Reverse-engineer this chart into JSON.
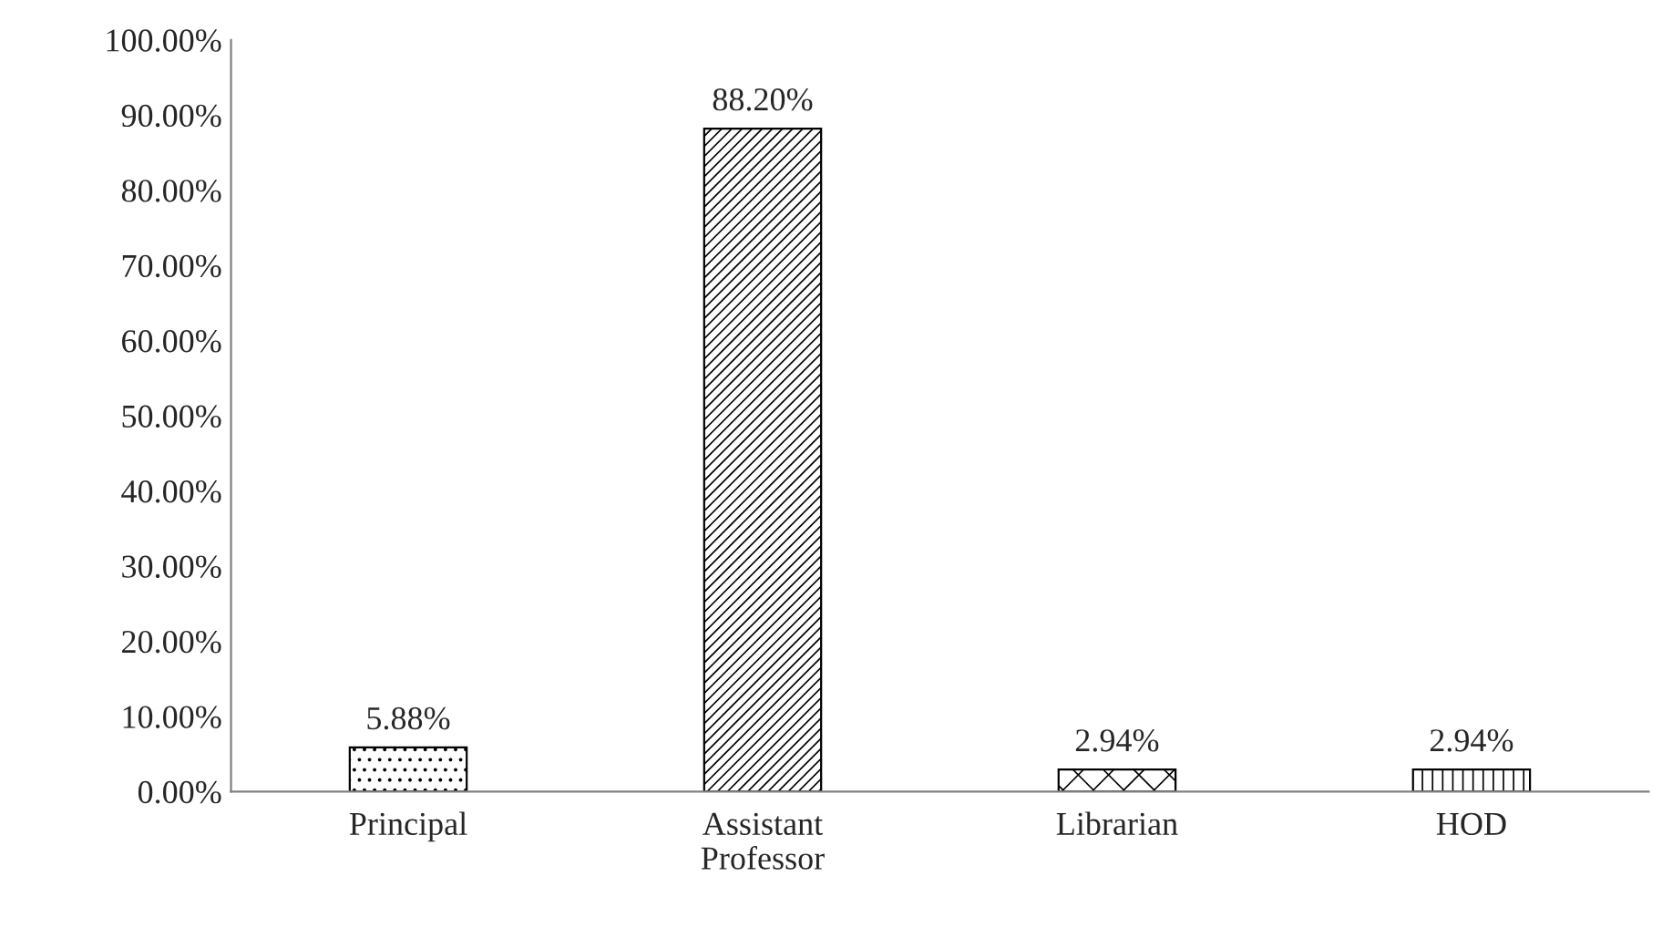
{
  "chart_data": {
    "type": "bar",
    "categories": [
      "Principal",
      "Assistant\nProfessor",
      "Librarian",
      "HOD"
    ],
    "values": [
      5.88,
      88.2,
      2.94,
      2.94
    ],
    "value_labels": [
      "5.88%",
      "88.20%",
      "2.94%",
      "2.94%"
    ],
    "ylim": [
      0,
      100
    ],
    "yticks": [
      {
        "value": 0,
        "label": "0.00%"
      },
      {
        "value": 10,
        "label": "10.00%"
      },
      {
        "value": 20,
        "label": "20.00%"
      },
      {
        "value": 30,
        "label": "30.00%"
      },
      {
        "value": 40,
        "label": "40.00%"
      },
      {
        "value": 50,
        "label": "50.00%"
      },
      {
        "value": 60,
        "label": "60.00%"
      },
      {
        "value": 70,
        "label": "70.00%"
      },
      {
        "value": 80,
        "label": "80.00%"
      },
      {
        "value": 90,
        "label": "90.00%"
      },
      {
        "value": 100,
        "label": "100.00%"
      }
    ],
    "grid": false,
    "legend": false
  }
}
